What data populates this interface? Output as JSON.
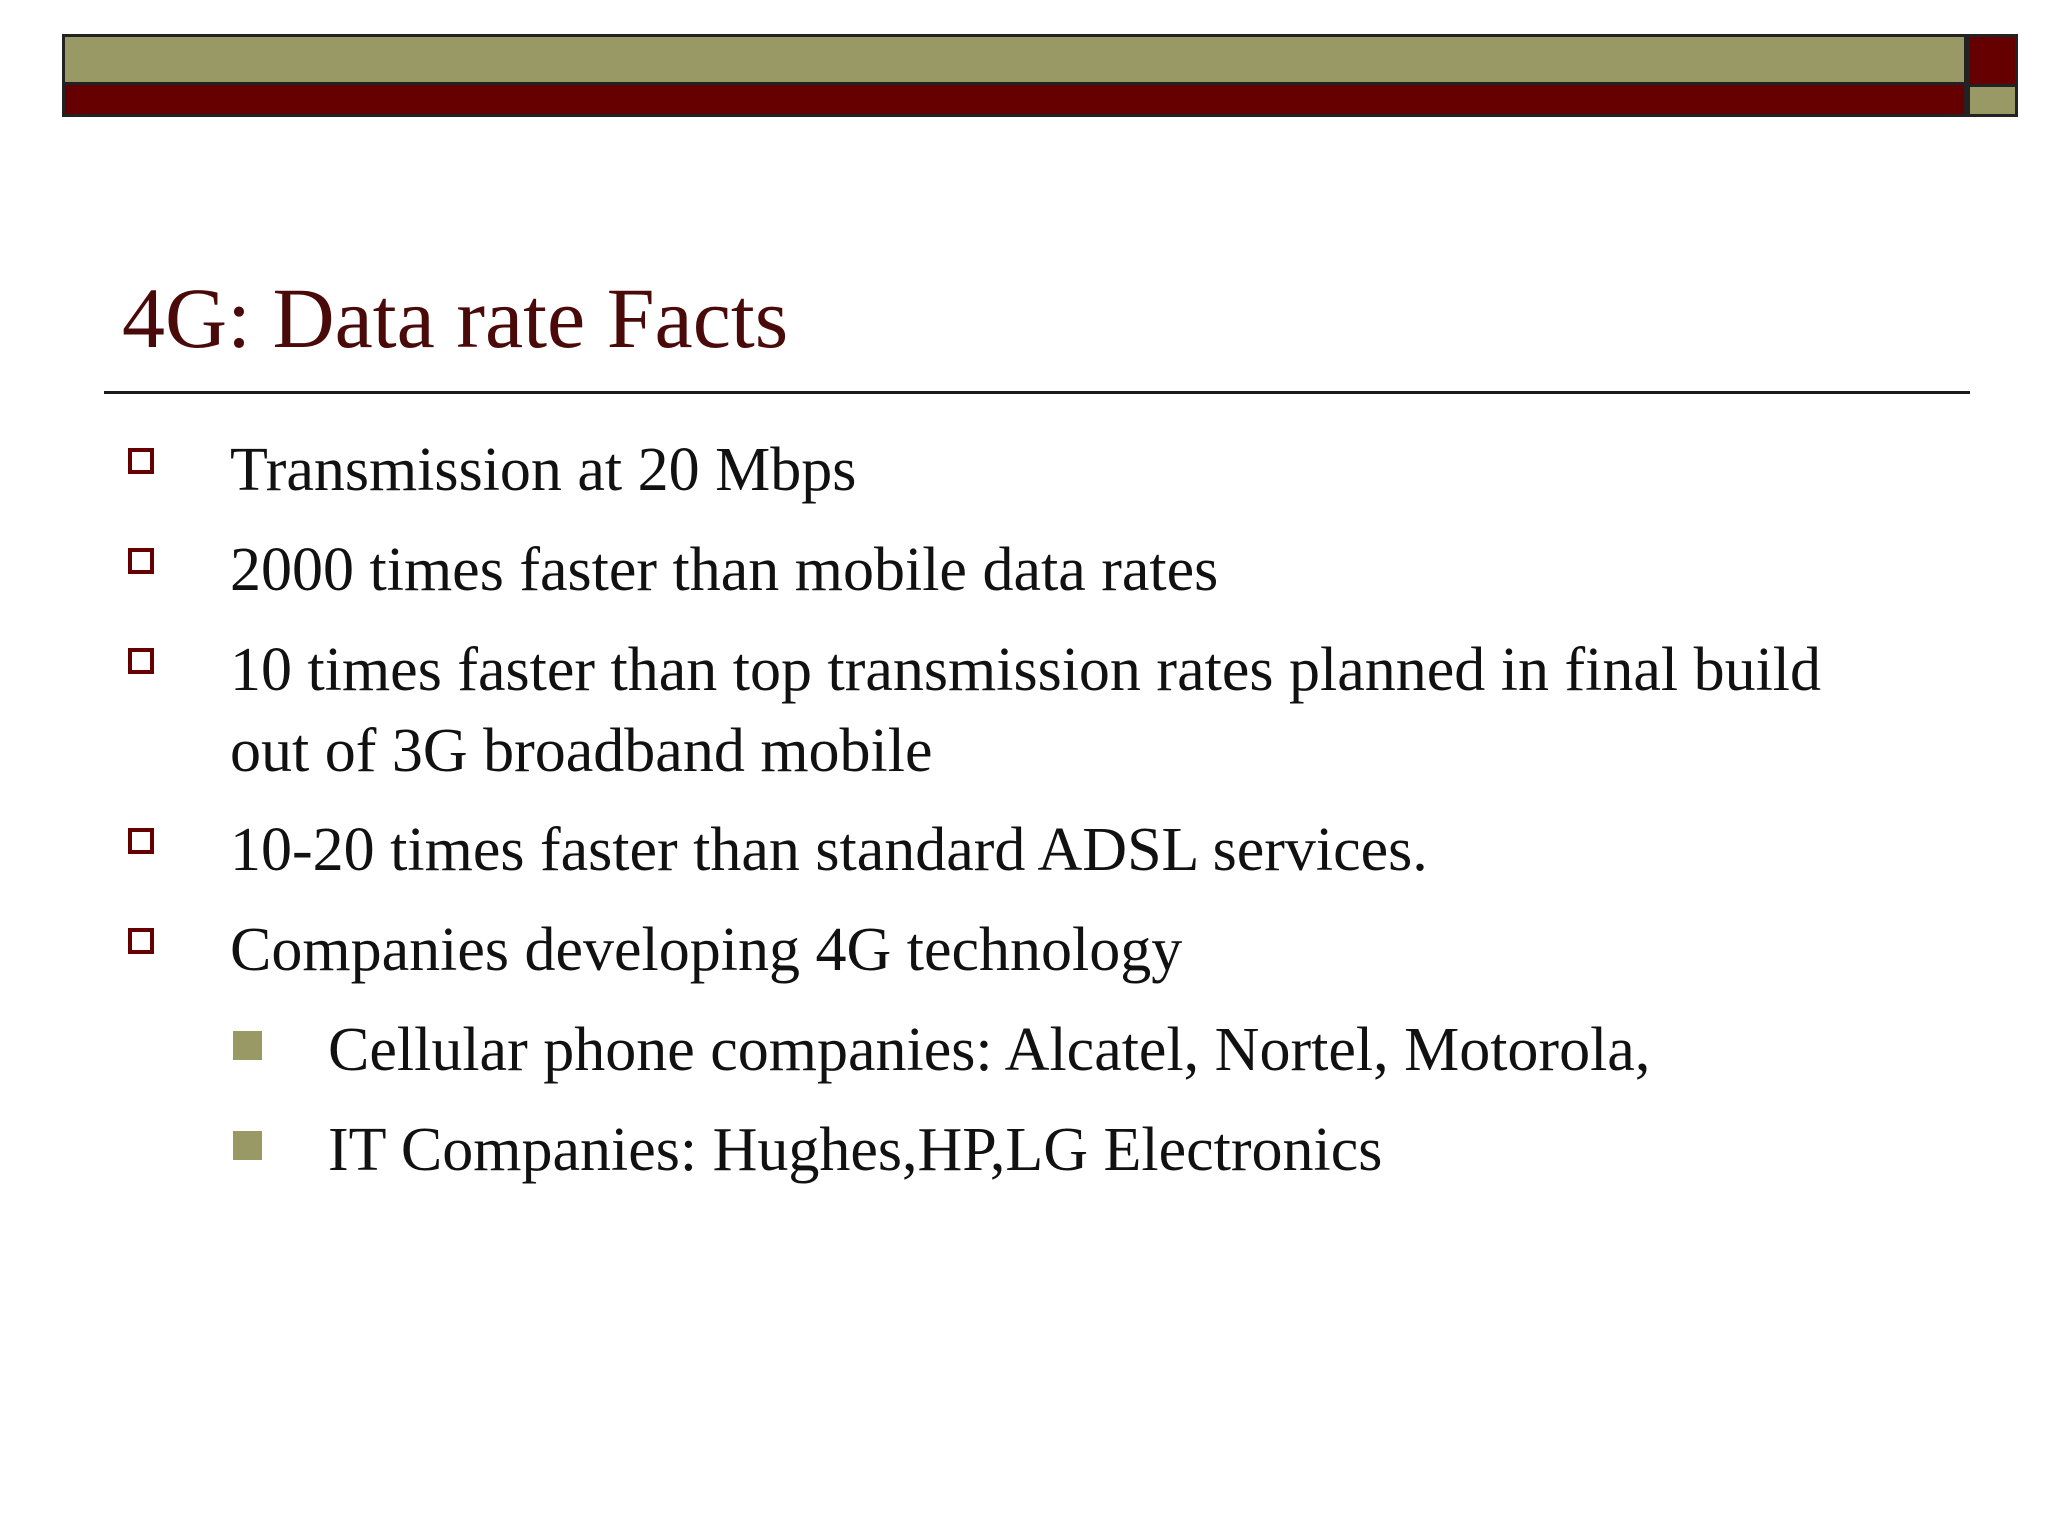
{
  "theme": {
    "olive": "#999966",
    "maroon": "#660000",
    "title_color": "#4a0a0a"
  },
  "slide": {
    "title": "4G: Data rate Facts",
    "bullets": [
      {
        "text": "Transmission at 20 Mbps",
        "level": 1
      },
      {
        "text": "2000 times faster than mobile data rates",
        "level": 1
      },
      {
        "text": "10 times faster than top transmission rates planned in final build out of 3G broadband mobile",
        "level": 1
      },
      {
        "text": "10-20 times faster than standard ADSL services.",
        "level": 1
      },
      {
        "text": "Companies developing 4G technology",
        "level": 1
      },
      {
        "text": "Cellular phone companies: Alcatel, Nortel, Motorola,",
        "level": 2
      },
      {
        "text": "IT Companies: Hughes,HP,LG Electronics",
        "level": 2
      }
    ]
  }
}
